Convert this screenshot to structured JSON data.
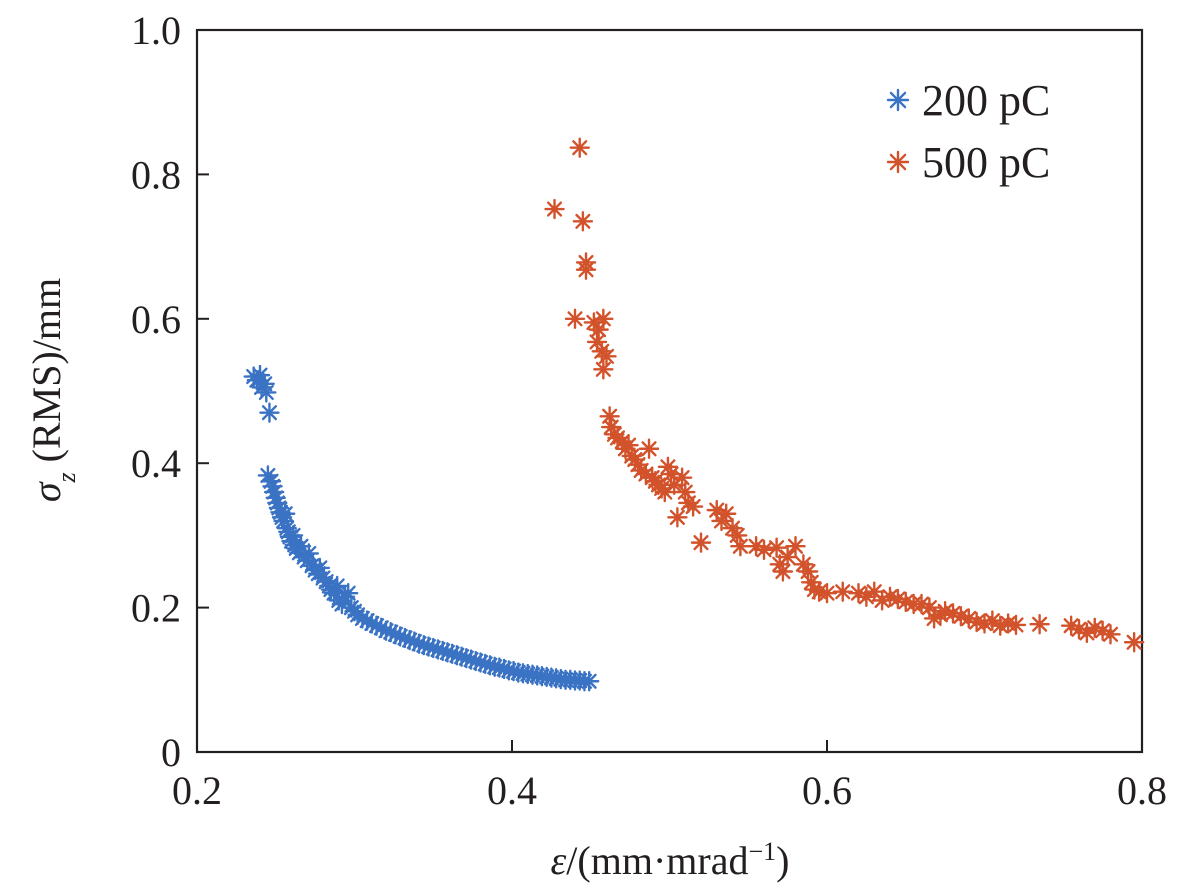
{
  "chart_data": {
    "type": "scatter",
    "title": "",
    "xlabel": {
      "symbol": "ε",
      "rest": "/(mm·mrad",
      "sup": "−1",
      "close": ")"
    },
    "ylabel": {
      "symbol": "σ",
      "sub": "z",
      "rest": " (RMS)/mm"
    },
    "xlim": [
      0.2,
      0.8
    ],
    "ylim": [
      0,
      1.0
    ],
    "xticks": [
      "0.2",
      "0.4",
      "0.6",
      "0.8"
    ],
    "yticks": [
      "0",
      "0.2",
      "0.4",
      "0.6",
      "0.8",
      "1.0"
    ],
    "grid": false,
    "legend_position": "top-right",
    "series": [
      {
        "name": "200 pC",
        "color": "#3a72c4",
        "marker": "asterisk",
        "points": [
          [
            0.236,
            0.52
          ],
          [
            0.238,
            0.515
          ],
          [
            0.24,
            0.522
          ],
          [
            0.241,
            0.505
          ],
          [
            0.243,
            0.51
          ],
          [
            0.244,
            0.498
          ],
          [
            0.246,
            0.47
          ],
          [
            0.245,
            0.383
          ],
          [
            0.247,
            0.375
          ],
          [
            0.248,
            0.368
          ],
          [
            0.249,
            0.36
          ],
          [
            0.25,
            0.352
          ],
          [
            0.251,
            0.345
          ],
          [
            0.252,
            0.338
          ],
          [
            0.253,
            0.332
          ],
          [
            0.254,
            0.325
          ],
          [
            0.255,
            0.32
          ],
          [
            0.256,
            0.33
          ],
          [
            0.257,
            0.31
          ],
          [
            0.258,
            0.305
          ],
          [
            0.259,
            0.298
          ],
          [
            0.26,
            0.292
          ],
          [
            0.261,
            0.3
          ],
          [
            0.262,
            0.287
          ],
          [
            0.263,
            0.282
          ],
          [
            0.265,
            0.276
          ],
          [
            0.266,
            0.285
          ],
          [
            0.268,
            0.27
          ],
          [
            0.27,
            0.265
          ],
          [
            0.271,
            0.275
          ],
          [
            0.273,
            0.258
          ],
          [
            0.275,
            0.252
          ],
          [
            0.277,
            0.247
          ],
          [
            0.278,
            0.255
          ],
          [
            0.28,
            0.241
          ],
          [
            0.282,
            0.236
          ],
          [
            0.284,
            0.23
          ],
          [
            0.285,
            0.225
          ],
          [
            0.287,
            0.22
          ],
          [
            0.289,
            0.23
          ],
          [
            0.29,
            0.21
          ],
          [
            0.292,
            0.205
          ],
          [
            0.294,
            0.215
          ],
          [
            0.296,
            0.22
          ],
          [
            0.298,
            0.2
          ],
          [
            0.3,
            0.195
          ],
          [
            0.302,
            0.19
          ],
          [
            0.305,
            0.185
          ],
          [
            0.308,
            0.182
          ],
          [
            0.311,
            0.178
          ],
          [
            0.314,
            0.175
          ],
          [
            0.317,
            0.172
          ],
          [
            0.32,
            0.168
          ],
          [
            0.323,
            0.166
          ],
          [
            0.326,
            0.163
          ],
          [
            0.329,
            0.16
          ],
          [
            0.332,
            0.158
          ],
          [
            0.335,
            0.155
          ],
          [
            0.338,
            0.153
          ],
          [
            0.341,
            0.15
          ],
          [
            0.344,
            0.148
          ],
          [
            0.347,
            0.146
          ],
          [
            0.35,
            0.144
          ],
          [
            0.353,
            0.142
          ],
          [
            0.356,
            0.14
          ],
          [
            0.359,
            0.138
          ],
          [
            0.362,
            0.136
          ],
          [
            0.365,
            0.134
          ],
          [
            0.368,
            0.132
          ],
          [
            0.371,
            0.13
          ],
          [
            0.374,
            0.128
          ],
          [
            0.377,
            0.126
          ],
          [
            0.38,
            0.124
          ],
          [
            0.383,
            0.122
          ],
          [
            0.386,
            0.12
          ],
          [
            0.389,
            0.118
          ],
          [
            0.392,
            0.117
          ],
          [
            0.395,
            0.115
          ],
          [
            0.398,
            0.113
          ],
          [
            0.401,
            0.112
          ],
          [
            0.404,
            0.11
          ],
          [
            0.407,
            0.109
          ],
          [
            0.41,
            0.108
          ],
          [
            0.413,
            0.107
          ],
          [
            0.416,
            0.106
          ],
          [
            0.419,
            0.105
          ],
          [
            0.422,
            0.104
          ],
          [
            0.425,
            0.103
          ],
          [
            0.428,
            0.102
          ],
          [
            0.431,
            0.101
          ],
          [
            0.434,
            0.1
          ],
          [
            0.437,
            0.1
          ],
          [
            0.44,
            0.099
          ],
          [
            0.443,
            0.099
          ],
          [
            0.446,
            0.098
          ],
          [
            0.449,
            0.098
          ]
        ]
      },
      {
        "name": "500 pC",
        "color": "#d2522b",
        "marker": "asterisk",
        "points": [
          [
            0.443,
            0.837
          ],
          [
            0.427,
            0.752
          ],
          [
            0.445,
            0.735
          ],
          [
            0.447,
            0.678
          ],
          [
            0.447,
            0.668
          ],
          [
            0.44,
            0.6
          ],
          [
            0.452,
            0.595
          ],
          [
            0.455,
            0.585
          ],
          [
            0.458,
            0.6
          ],
          [
            0.454,
            0.568
          ],
          [
            0.457,
            0.555
          ],
          [
            0.46,
            0.548
          ],
          [
            0.458,
            0.53
          ],
          [
            0.462,
            0.465
          ],
          [
            0.463,
            0.45
          ],
          [
            0.465,
            0.44
          ],
          [
            0.467,
            0.435
          ],
          [
            0.47,
            0.43
          ],
          [
            0.472,
            0.42
          ],
          [
            0.474,
            0.425
          ],
          [
            0.476,
            0.41
          ],
          [
            0.478,
            0.405
          ],
          [
            0.48,
            0.398
          ],
          [
            0.482,
            0.39
          ],
          [
            0.485,
            0.385
          ],
          [
            0.487,
            0.42
          ],
          [
            0.489,
            0.38
          ],
          [
            0.491,
            0.375
          ],
          [
            0.493,
            0.37
          ],
          [
            0.495,
            0.365
          ],
          [
            0.497,
            0.36
          ],
          [
            0.499,
            0.395
          ],
          [
            0.501,
            0.385
          ],
          [
            0.503,
            0.37
          ],
          [
            0.505,
            0.325
          ],
          [
            0.508,
            0.38
          ],
          [
            0.51,
            0.36
          ],
          [
            0.512,
            0.345
          ],
          [
            0.515,
            0.34
          ],
          [
            0.52,
            0.29
          ],
          [
            0.53,
            0.335
          ],
          [
            0.533,
            0.32
          ],
          [
            0.536,
            0.33
          ],
          [
            0.54,
            0.31
          ],
          [
            0.543,
            0.3
          ],
          [
            0.545,
            0.285
          ],
          [
            0.555,
            0.285
          ],
          [
            0.56,
            0.28
          ],
          [
            0.568,
            0.283
          ],
          [
            0.57,
            0.26
          ],
          [
            0.572,
            0.25
          ],
          [
            0.575,
            0.27
          ],
          [
            0.58,
            0.285
          ],
          [
            0.585,
            0.26
          ],
          [
            0.588,
            0.25
          ],
          [
            0.59,
            0.235
          ],
          [
            0.592,
            0.225
          ],
          [
            0.595,
            0.222
          ],
          [
            0.6,
            0.22
          ],
          [
            0.61,
            0.222
          ],
          [
            0.62,
            0.22
          ],
          [
            0.625,
            0.215
          ],
          [
            0.63,
            0.222
          ],
          [
            0.635,
            0.21
          ],
          [
            0.64,
            0.215
          ],
          [
            0.645,
            0.212
          ],
          [
            0.65,
            0.208
          ],
          [
            0.655,
            0.205
          ],
          [
            0.66,
            0.205
          ],
          [
            0.665,
            0.2
          ],
          [
            0.668,
            0.185
          ],
          [
            0.672,
            0.19
          ],
          [
            0.675,
            0.195
          ],
          [
            0.68,
            0.192
          ],
          [
            0.685,
            0.188
          ],
          [
            0.69,
            0.185
          ],
          [
            0.695,
            0.18
          ],
          [
            0.7,
            0.178
          ],
          [
            0.705,
            0.182
          ],
          [
            0.71,
            0.175
          ],
          [
            0.715,
            0.178
          ],
          [
            0.72,
            0.176
          ],
          [
            0.735,
            0.177
          ],
          [
            0.755,
            0.175
          ],
          [
            0.76,
            0.17
          ],
          [
            0.765,
            0.165
          ],
          [
            0.77,
            0.172
          ],
          [
            0.775,
            0.168
          ],
          [
            0.78,
            0.163
          ],
          [
            0.795,
            0.152
          ]
        ]
      }
    ]
  }
}
